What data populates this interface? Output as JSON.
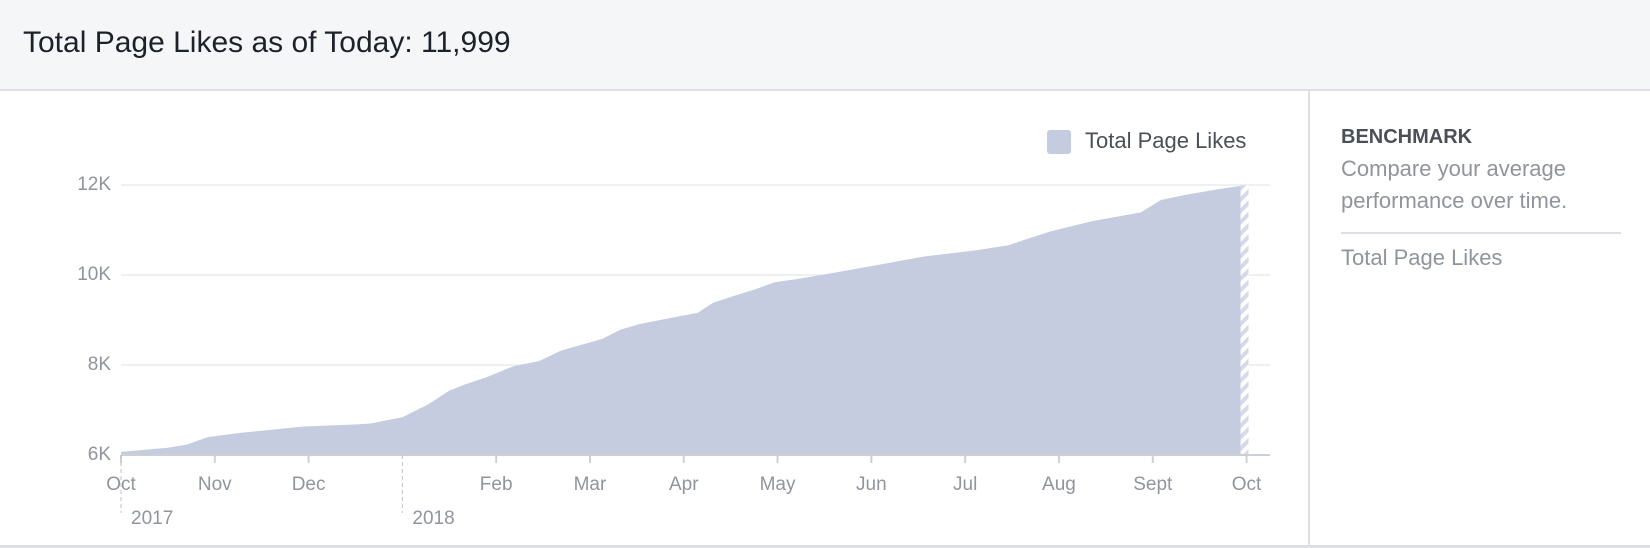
{
  "header": {
    "title": "Total Page Likes as of Today: 11,999"
  },
  "chart_data": {
    "type": "area",
    "x": [
      0,
      0.5,
      0.7,
      0.93,
      1.26,
      1.5,
      1.93,
      2.27,
      2.52,
      2.66,
      3.0,
      3.28,
      3.5,
      3.67,
      3.9,
      4.18,
      4.46,
      4.69,
      5.13,
      5.33,
      5.53,
      5.87,
      6.15,
      6.31,
      6.54,
      6.76,
      6.97,
      7.21,
      7.55,
      8.11,
      8.56,
      9.12,
      9.46,
      9.63,
      9.91,
      10.36,
      10.87,
      11.09,
      11.37,
      11.71,
      12.0
    ],
    "series": [
      {
        "name": "Total Page Likes",
        "color": "#c5cce0",
        "values": [
          6070,
          6160,
          6230,
          6400,
          6490,
          6540,
          6630,
          6660,
          6680,
          6700,
          6840,
          7130,
          7430,
          7570,
          7730,
          7970,
          8090,
          8320,
          8580,
          8790,
          8910,
          9050,
          9160,
          9380,
          9540,
          9680,
          9840,
          9910,
          10030,
          10240,
          10410,
          10550,
          10660,
          10780,
          10970,
          11200,
          11390,
          11670,
          11790,
          11910,
          11999
        ]
      }
    ],
    "xlim": [
      0,
      12.25
    ],
    "xticks": [
      {
        "value": 0,
        "label": "Oct"
      },
      {
        "value": 1,
        "label": "Nov"
      },
      {
        "value": 2,
        "label": "Dec"
      },
      {
        "value": 4,
        "label": "Feb"
      },
      {
        "value": 5,
        "label": "Mar"
      },
      {
        "value": 6,
        "label": "Apr"
      },
      {
        "value": 7,
        "label": "May"
      },
      {
        "value": 8,
        "label": "Jun"
      },
      {
        "value": 9,
        "label": "Jul"
      },
      {
        "value": 10,
        "label": "Aug"
      },
      {
        "value": 11,
        "label": "Sept"
      },
      {
        "value": 12,
        "label": "Oct"
      }
    ],
    "year_labels": [
      {
        "value": 0,
        "label": "2017"
      },
      {
        "value": 3,
        "label": "2018"
      }
    ],
    "ylim": [
      6000,
      12000
    ],
    "yticks": [
      {
        "value": 6000,
        "label": "6K"
      },
      {
        "value": 8000,
        "label": "8K"
      },
      {
        "value": 10000,
        "label": "10K"
      },
      {
        "value": 12000,
        "label": "12K"
      }
    ],
    "grid": true
  },
  "sidebar": {
    "heading": "BENCHMARK",
    "text": "Compare your average performance over time.",
    "metric": "Total Page Likes"
  }
}
